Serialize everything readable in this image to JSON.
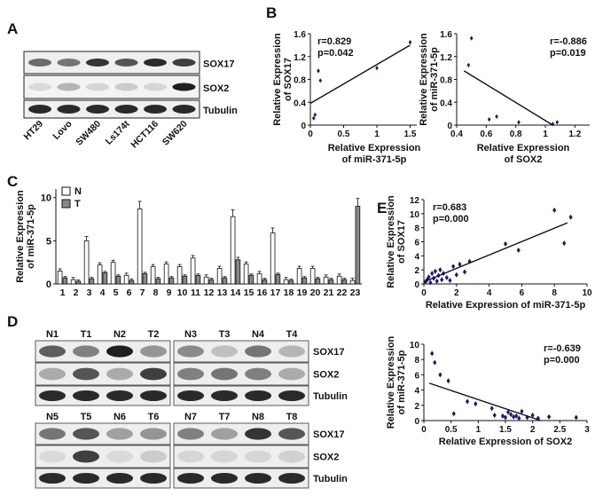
{
  "panels": {
    "A": {
      "letter": "A",
      "lanes": [
        "HT29",
        "Lovo",
        "SW480",
        "Ls174t",
        "HCT116",
        "SW620"
      ],
      "rows": [
        "SOX17",
        "SOX2",
        "Tubulin"
      ],
      "intensity": {
        "SOX17": [
          0.6,
          0.55,
          0.85,
          0.7,
          0.9,
          0.8
        ],
        "SOX2": [
          0.08,
          0.25,
          0.1,
          0.15,
          0.1,
          0.95
        ],
        "Tubulin": [
          0.9,
          0.9,
          0.9,
          0.9,
          0.9,
          0.9
        ]
      }
    },
    "B": {
      "letter": "B",
      "left": {
        "r_text": "r=0.829",
        "p_text": "p=0.042",
        "ylabel_1": "Relative Expression",
        "ylabel_2": "of SOX17",
        "xlabel_1": "Relative Expression",
        "xlabel_2": "of miR-371-5p",
        "xticks": [
          "0",
          "0.5",
          "1",
          "1.5"
        ],
        "yticks": [
          "0",
          "0.4",
          "0.8",
          "1.2",
          "1.6"
        ],
        "xlim": [
          0,
          1.6
        ],
        "ylim": [
          0,
          1.6
        ],
        "points": [
          [
            0.05,
            0.12
          ],
          [
            0.07,
            0.18
          ],
          [
            0.12,
            0.95
          ],
          [
            0.15,
            0.78
          ],
          [
            1.0,
            1.0
          ],
          [
            1.5,
            1.45
          ]
        ],
        "fit": [
          [
            0,
            0.38
          ],
          [
            1.5,
            1.4
          ]
        ]
      },
      "right": {
        "r_text": "r=-0.886",
        "p_text": "p=0.019",
        "ylabel_1": "Relative Expression",
        "ylabel_2": "of miR-371-5p",
        "xlabel_1": "Relative Expression",
        "xlabel_2": "of SOX2",
        "xticks": [
          "0.4",
          "0.6",
          "0.8",
          "1",
          "1.2"
        ],
        "yticks": [
          "0",
          "0.4",
          "0.8",
          "1.2",
          "1.6"
        ],
        "xlim": [
          0.4,
          1.3
        ],
        "ylim": [
          0,
          1.6
        ],
        "points": [
          [
            0.48,
            1.05
          ],
          [
            0.5,
            1.52
          ],
          [
            0.62,
            0.1
          ],
          [
            0.67,
            0.15
          ],
          [
            0.82,
            0.05
          ],
          [
            1.05,
            0.02
          ],
          [
            1.08,
            0.05
          ]
        ],
        "fit": [
          [
            0.45,
            0.95
          ],
          [
            1.05,
            0.0
          ]
        ]
      }
    },
    "C": {
      "letter": "C",
      "legend_n": "N",
      "legend_t": "T",
      "ylabel_1": "Relative Expression",
      "ylabel_2": "of miR-371-5p",
      "yticks": [
        "0",
        "5",
        "10"
      ],
      "ylim": [
        0,
        11
      ],
      "categories": [
        "1",
        "2",
        "3",
        "4",
        "5",
        "6",
        "7",
        "8",
        "9",
        "10",
        "11",
        "12",
        "13",
        "14",
        "15",
        "16",
        "17",
        "18",
        "19",
        "20",
        "21",
        "22",
        "23"
      ],
      "n_values": [
        1.5,
        0.5,
        5.0,
        2.2,
        2.5,
        1.0,
        8.7,
        2.0,
        2.3,
        2.0,
        3.0,
        0.8,
        1.8,
        7.8,
        2.3,
        1.2,
        5.9,
        0.5,
        1.8,
        1.8,
        0.8,
        0.9,
        0.4
      ],
      "t_values": [
        0.7,
        0.3,
        0.6,
        1.3,
        0.9,
        0.4,
        1.2,
        0.6,
        0.7,
        0.9,
        1.0,
        0.5,
        0.7,
        2.8,
        1.0,
        0.5,
        1.1,
        0.4,
        0.7,
        0.6,
        0.5,
        0.5,
        9.0
      ]
    },
    "D": {
      "letter": "D",
      "top_left_lanes": [
        "N1",
        "T1",
        "N2",
        "T2"
      ],
      "top_right_lanes": [
        "N3",
        "T3",
        "N4",
        "T4"
      ],
      "bottom_left_lanes": [
        "N5",
        "T5",
        "N6",
        "T6"
      ],
      "bottom_right_lanes": [
        "N7",
        "T7",
        "N8",
        "T8"
      ],
      "rows": [
        "SOX17",
        "SOX2",
        "Tubulin"
      ],
      "intensity": {
        "top": {
          "SOX17": [
            0.65,
            0.5,
            0.95,
            0.4,
            0.45,
            0.2,
            0.55,
            0.25
          ],
          "SOX2": [
            0.3,
            0.7,
            0.3,
            0.8,
            0.5,
            0.55,
            0.5,
            0.3
          ],
          "Tubulin": [
            0.9,
            0.9,
            0.9,
            0.9,
            0.9,
            0.9,
            0.9,
            0.9
          ]
        },
        "bottom": {
          "SOX17": [
            0.55,
            0.7,
            0.35,
            0.4,
            0.5,
            0.35,
            0.85,
            0.7
          ],
          "SOX2": [
            0.08,
            0.8,
            0.08,
            0.15,
            0.1,
            0.1,
            0.1,
            0.12
          ],
          "Tubulin": [
            0.9,
            0.9,
            0.9,
            0.9,
            0.9,
            0.9,
            0.9,
            0.9
          ]
        }
      }
    },
    "E": {
      "letter": "E",
      "top": {
        "r_text": "r=0.683",
        "p_text": "p=0.000",
        "ylabel_1": "Relative Expression",
        "ylabel_2": "of SOX17",
        "xlabel": "Relative Expression of miR-371-5p",
        "xticks": [
          "0",
          "2",
          "4",
          "6",
          "8",
          "10"
        ],
        "yticks": [
          "0",
          "2",
          "4",
          "6",
          "8",
          "10",
          "12"
        ],
        "xlim": [
          0,
          10
        ],
        "ylim": [
          0,
          12
        ],
        "points": [
          [
            0.1,
            0.3
          ],
          [
            0.2,
            0.6
          ],
          [
            0.3,
            1.0
          ],
          [
            0.4,
            0.2
          ],
          [
            0.5,
            1.5
          ],
          [
            0.6,
            0.8
          ],
          [
            0.7,
            1.8
          ],
          [
            0.8,
            0.4
          ],
          [
            0.9,
            1.2
          ],
          [
            1.0,
            2.0
          ],
          [
            1.1,
            0.6
          ],
          [
            1.2,
            1.5
          ],
          [
            1.4,
            0.9
          ],
          [
            1.6,
            0.5
          ],
          [
            1.8,
            2.5
          ],
          [
            2.0,
            1.3
          ],
          [
            2.2,
            2.8
          ],
          [
            2.5,
            1.7
          ],
          [
            2.8,
            3.2
          ],
          [
            5.0,
            5.7
          ],
          [
            5.8,
            4.8
          ],
          [
            8.0,
            10.5
          ],
          [
            8.6,
            5.8
          ],
          [
            9.0,
            9.5
          ]
        ],
        "fit": [
          [
            0,
            0.3
          ],
          [
            8.8,
            8.7
          ]
        ]
      },
      "bottom": {
        "r_text": "r=-0.639",
        "p_text": "p=0.000",
        "ylabel_1": "Relative Expression",
        "ylabel_2": "of miR-371-5p",
        "xlabel": "Relative Expression of SOX2",
        "xticks": [
          "0",
          "0.5",
          "1",
          "1.5",
          "2",
          "2.5",
          "3"
        ],
        "yticks": [
          "0",
          "2",
          "4",
          "6",
          "8",
          "10"
        ],
        "xlim": [
          0,
          3
        ],
        "ylim": [
          0,
          10
        ],
        "points": [
          [
            0.15,
            8.8
          ],
          [
            0.2,
            7.6
          ],
          [
            0.3,
            6.0
          ],
          [
            0.45,
            5.2
          ],
          [
            0.55,
            0.9
          ],
          [
            0.8,
            2.5
          ],
          [
            0.95,
            2.2
          ],
          [
            1.25,
            1.6
          ],
          [
            1.3,
            0.7
          ],
          [
            1.45,
            0.6
          ],
          [
            1.5,
            0.4
          ],
          [
            1.55,
            1.1
          ],
          [
            1.6,
            0.8
          ],
          [
            1.65,
            0.5
          ],
          [
            1.7,
            0.6
          ],
          [
            1.75,
            0.3
          ],
          [
            1.8,
            1.2
          ],
          [
            1.9,
            0.4
          ],
          [
            2.0,
            0.7
          ],
          [
            2.1,
            0.3
          ],
          [
            2.3,
            0.5
          ],
          [
            2.8,
            0.4
          ]
        ],
        "fit": [
          [
            0.1,
            4.9
          ],
          [
            2.15,
            0.0
          ]
        ]
      }
    }
  },
  "colors": {
    "scatter": "#1a1a6e",
    "bar_n": "#ffffff",
    "bar_t": "#888888",
    "ink": "#111111"
  }
}
